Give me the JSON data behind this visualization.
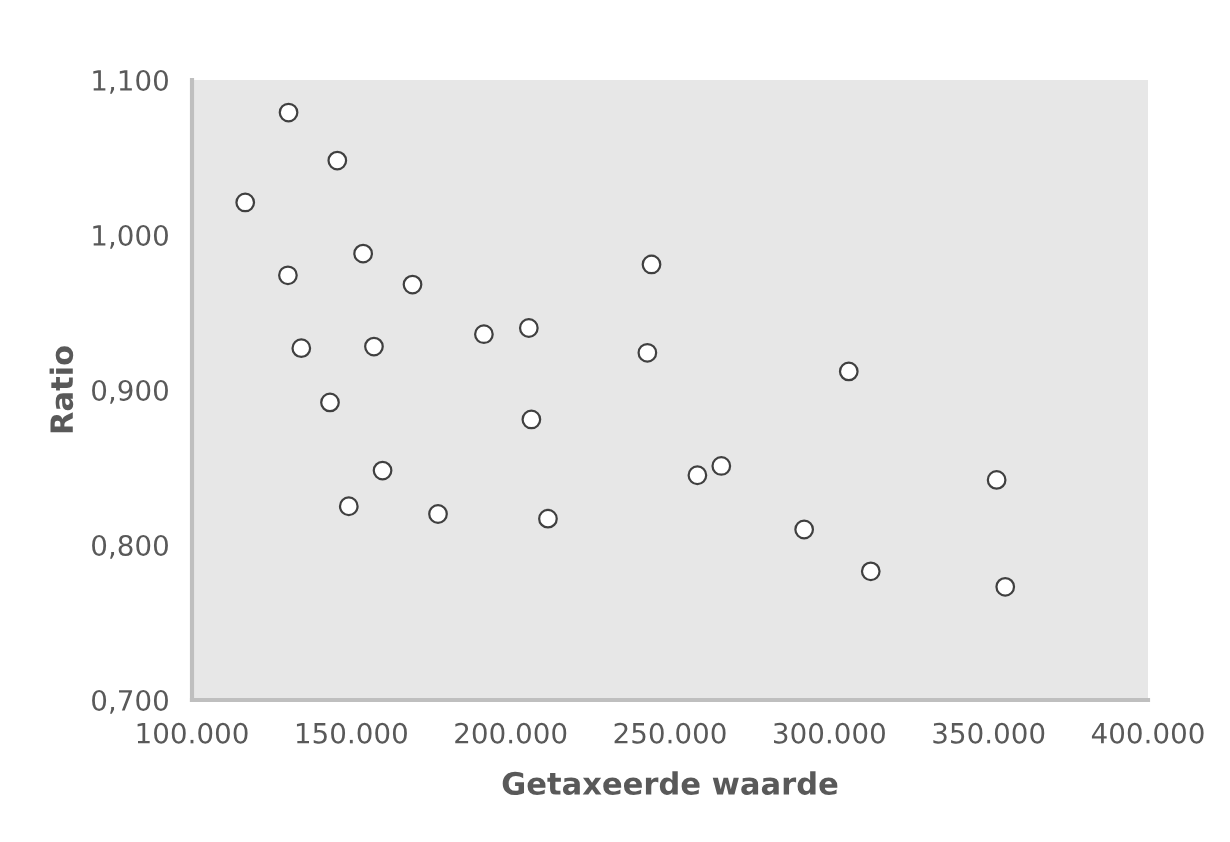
{
  "chart_data": {
    "type": "scatter",
    "xlabel": "Getaxeerde waarde",
    "ylabel": "Ratio",
    "x": [
      130300,
      145600,
      116700,
      153700,
      130100,
      169200,
      191600,
      205700,
      134300,
      157100,
      143300,
      206500,
      244200,
      242900,
      306100,
      159800,
      149200,
      177200,
      211700,
      258600,
      266100,
      292100,
      313000,
      352500,
      355200
    ],
    "values": [
      1.079,
      1.048,
      1.021,
      0.988,
      0.974,
      0.968,
      0.936,
      0.94,
      0.927,
      0.928,
      0.892,
      0.881,
      0.981,
      0.924,
      0.912,
      0.848,
      0.825,
      0.82,
      0.817,
      0.845,
      0.851,
      0.81,
      0.783,
      0.842,
      0.773
    ],
    "color": "#ffffff",
    "marker": "circle",
    "grid": false,
    "xlim": [
      100000,
      400000
    ],
    "xticks": [
      {
        "value": 100000,
        "label": "100.000"
      },
      {
        "value": 150000,
        "label": "150.000"
      },
      {
        "value": 200000,
        "label": "200.000"
      },
      {
        "value": 250000,
        "label": "250.000"
      },
      {
        "value": 300000,
        "label": "300.000"
      },
      {
        "value": 350000,
        "label": "350.000"
      },
      {
        "value": 400000,
        "label": "400.000"
      }
    ],
    "ylim": [
      0.7,
      1.1
    ],
    "yticks": [
      {
        "value": 0.7,
        "label": "0,700"
      },
      {
        "value": 0.8,
        "label": "0,800"
      },
      {
        "value": 0.9,
        "label": "0,900"
      },
      {
        "value": 1.0,
        "label": "1,000"
      },
      {
        "value": 1.1,
        "label": "1,100"
      }
    ]
  }
}
